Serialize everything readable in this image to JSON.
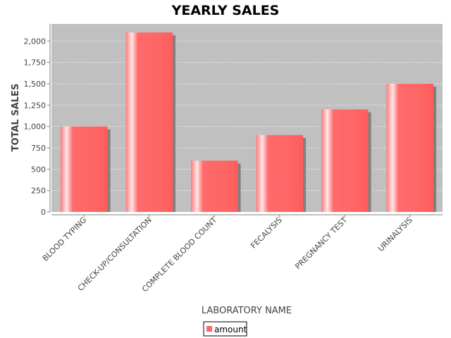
{
  "chart_data": {
    "type": "bar",
    "title": "YEARLY SALES",
    "xlabel": "LABORATORY NAME",
    "ylabel": "TOTAL SALES",
    "categories": [
      "BLOOD TYPING",
      "CHECK-UP/CONSULTATION",
      "COMPLETE BLOOD COUNT",
      "FECALYSIS",
      "PREGNANCY TEST",
      "URINALYSIS"
    ],
    "series": [
      {
        "name": "amount",
        "values": [
          1000,
          2100,
          600,
          900,
          1200,
          1500
        ]
      }
    ],
    "ylim": [
      0,
      2200
    ],
    "yticks": [
      0,
      250,
      500,
      750,
      1000,
      1250,
      1500,
      1750,
      2000
    ],
    "ytick_labels": [
      "0",
      "250",
      "500",
      "750",
      "1,000",
      "1,250",
      "1,500",
      "1,750",
      "2,000"
    ],
    "grid": true,
    "legend_position": "bottom",
    "colors": {
      "bar": "#ff6666",
      "bar_highlight": "#ffe0e0",
      "bar_shadow": "#808080",
      "plot_background": "#c0c0c0",
      "gridline": "#e8e8e8"
    }
  }
}
